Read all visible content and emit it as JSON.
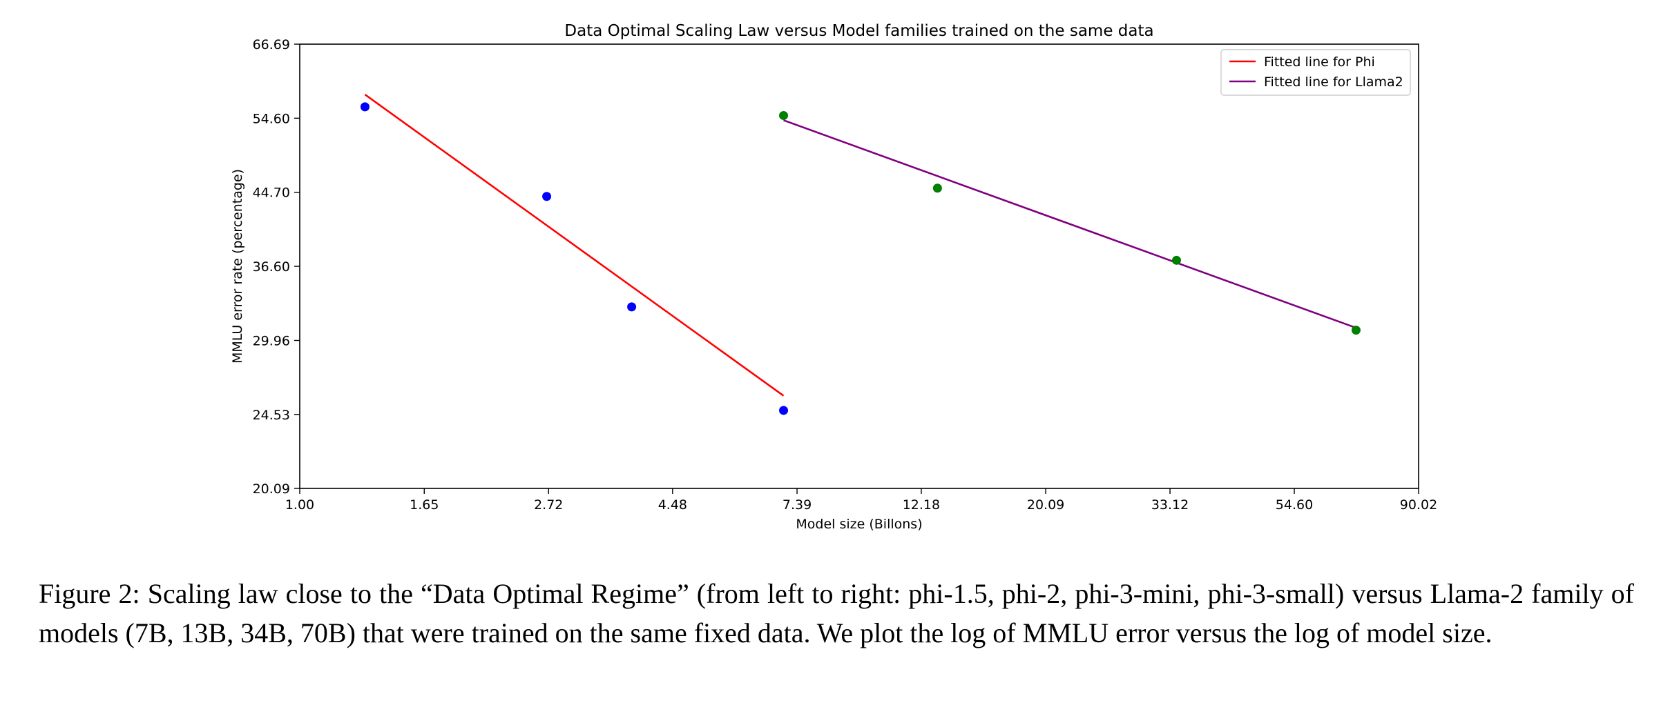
{
  "chart_data": {
    "type": "scatter",
    "title": "Data Optimal Scaling Law versus Model families trained on the same data",
    "xlabel": "Model size (Billons)",
    "ylabel": "MMLU error rate (percentage)",
    "x_scale": "log",
    "y_scale": "log",
    "xlim": [
      1.0,
      90.02
    ],
    "ylim": [
      20.09,
      66.69
    ],
    "x_ticks": [
      "1.00",
      "1.65",
      "2.72",
      "4.48",
      "7.39",
      "12.18",
      "20.09",
      "33.12",
      "54.60",
      "90.02"
    ],
    "y_ticks": [
      "20.09",
      "24.53",
      "29.96",
      "36.60",
      "44.70",
      "54.60",
      "66.69"
    ],
    "grid": false,
    "legend_position": "top-right",
    "series": [
      {
        "name": "Phi",
        "kind": "points",
        "color": "#0000ff",
        "x": [
          1.3,
          2.7,
          3.8,
          7.0
        ],
        "y": [
          56.3,
          44.2,
          32.8,
          24.8
        ]
      },
      {
        "name": "Llama2",
        "kind": "points",
        "color": "#008000",
        "x": [
          7,
          13,
          34,
          70
        ],
        "y": [
          55.0,
          45.2,
          37.2,
          30.8
        ]
      },
      {
        "name": "Fitted line for Phi",
        "kind": "line",
        "color": "#ff0000",
        "x": [
          1.3,
          7.0
        ],
        "y": [
          58.2,
          25.8
        ]
      },
      {
        "name": "Fitted line for Llama2",
        "kind": "line",
        "color": "#800080",
        "x": [
          7,
          70
        ],
        "y": [
          54.3,
          31.0
        ]
      }
    ],
    "legend": [
      "Fitted line for Phi",
      "Fitted line for Llama2"
    ]
  },
  "caption": "Figure 2: Scaling law close to the “Data Optimal Regime” (from left to right: phi-1.5, phi-2, phi-3-mini, phi-3-small) versus Llama-2 family of models (7B, 13B, 34B, 70B) that were trained on the same fixed data. We plot the log of MMLU error versus the log of model size."
}
